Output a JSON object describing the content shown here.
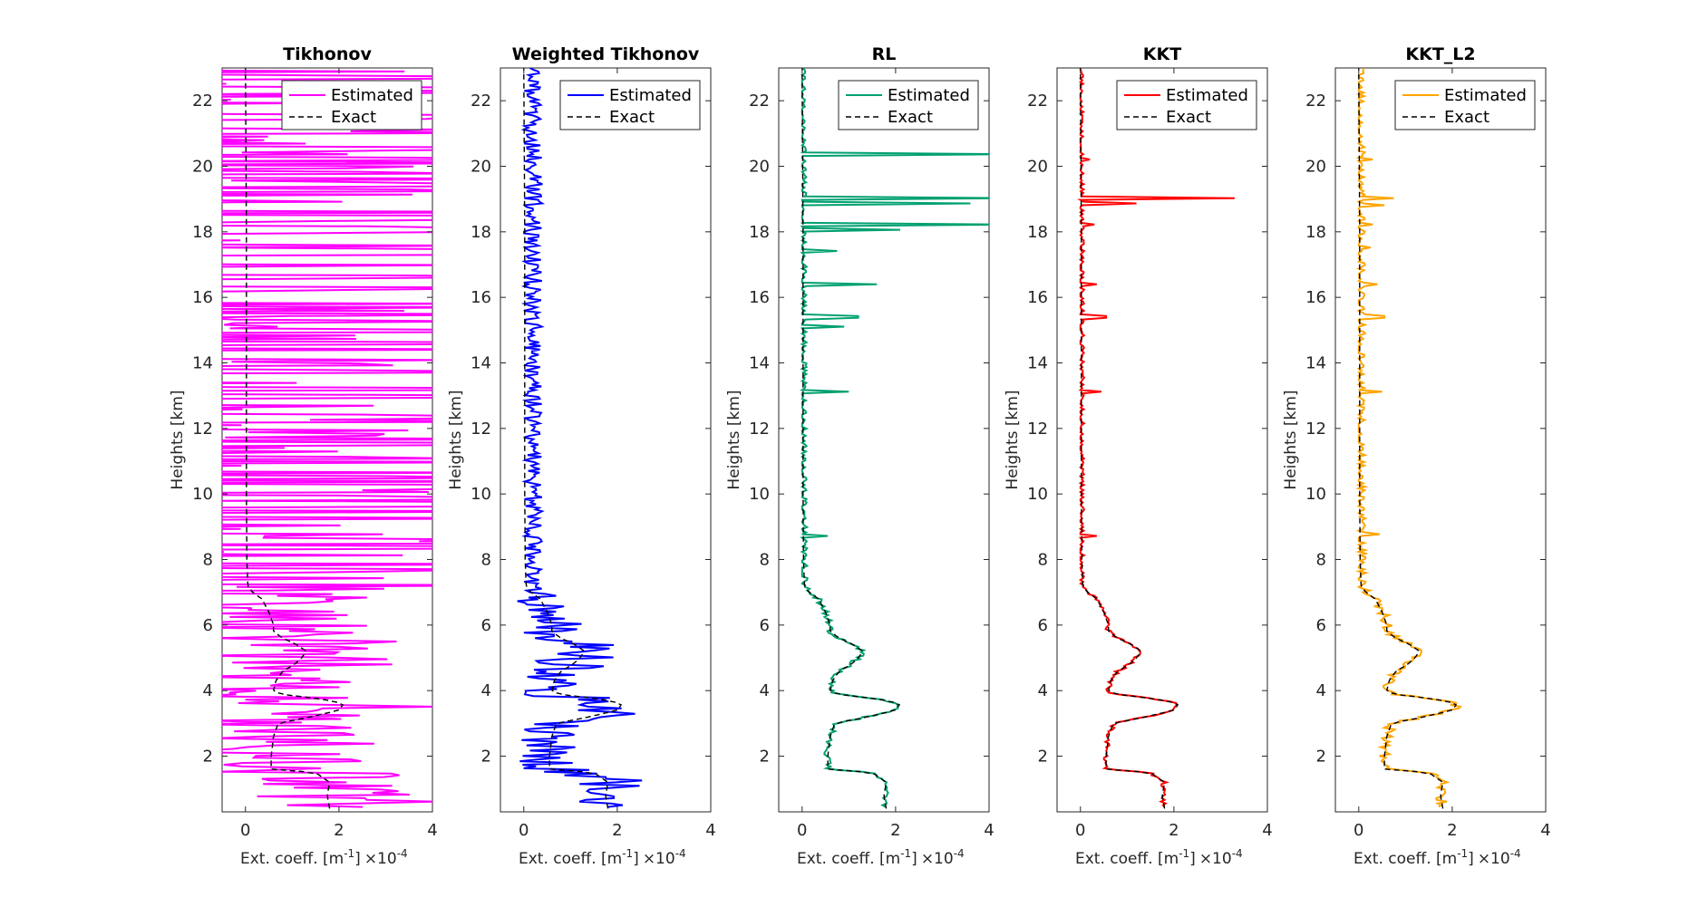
{
  "common": {
    "ylabel": "Heights [km]",
    "xlabel_pre": "Ext. coeff. [m",
    "xlabel_sup": "-1",
    "xlabel_post": "]",
    "multiplier": "×10",
    "multiplier_exp": "-4",
    "xlim": [
      -0.5,
      4
    ],
    "ylim": [
      0.3,
      23
    ],
    "xticks": [
      "0",
      "2",
      "4"
    ],
    "yticks": [
      "2",
      "4",
      "6",
      "8",
      "10",
      "12",
      "14",
      "16",
      "18",
      "20",
      "22"
    ],
    "legend_position": "top-right",
    "legend_estimated": "Estimated",
    "legend_exact": "Exact",
    "exact_color": "#000000"
  },
  "chart_data": [
    {
      "type": "line",
      "title": "Tikhonov",
      "color": "#ff00ff",
      "noise": 2.3,
      "clip": true,
      "series": [
        {
          "name": "Estimated"
        },
        {
          "name": "Exact",
          "style": "dashed"
        }
      ]
    },
    {
      "type": "line",
      "title": "Weighted Tikhonov",
      "color": "#0000ff",
      "noise": 0.9,
      "clip": true,
      "series": [
        {
          "name": "Estimated"
        },
        {
          "name": "Exact",
          "style": "dashed"
        }
      ]
    },
    {
      "type": "line",
      "title": "RL",
      "color": "#00a070",
      "noise": 0.08,
      "spikes": [
        [
          20.35,
          4.5
        ],
        [
          19.05,
          4.5
        ],
        [
          18.85,
          3.6
        ],
        [
          18.2,
          4.5
        ],
        [
          18.05,
          2.1
        ],
        [
          17.4,
          0.75
        ],
        [
          16.4,
          1.6
        ],
        [
          15.4,
          1.2
        ],
        [
          15.1,
          0.9
        ],
        [
          13.1,
          1.0
        ],
        [
          8.7,
          0.55
        ]
      ],
      "clip": true,
      "series": [
        {
          "name": "Estimated"
        },
        {
          "name": "Exact",
          "style": "dashed"
        }
      ]
    },
    {
      "type": "line",
      "title": "KKT",
      "color": "#ff0000",
      "noise": 0.06,
      "spikes": [
        [
          20.2,
          0.2
        ],
        [
          19.05,
          3.3
        ],
        [
          18.85,
          1.2
        ],
        [
          18.2,
          0.3
        ],
        [
          16.4,
          0.35
        ],
        [
          15.4,
          0.55
        ],
        [
          13.1,
          0.45
        ],
        [
          8.7,
          0.35
        ]
      ],
      "clip": true,
      "series": [
        {
          "name": "Estimated"
        },
        {
          "name": "Exact",
          "style": "dashed"
        }
      ]
    },
    {
      "type": "line",
      "title": "KKT_L2",
      "color": "#ffa500",
      "noise": 0.12,
      "spikes": [
        [
          20.2,
          0.3
        ],
        [
          19.05,
          0.75
        ],
        [
          18.8,
          0.55
        ],
        [
          18.2,
          0.3
        ],
        [
          17.5,
          0.25
        ],
        [
          16.4,
          0.4
        ],
        [
          15.4,
          0.55
        ],
        [
          13.1,
          0.5
        ],
        [
          8.75,
          0.45
        ]
      ],
      "clip": true,
      "series": [
        {
          "name": "Estimated"
        },
        {
          "name": "Exact",
          "style": "dashed"
        }
      ]
    }
  ],
  "exact_profile": {
    "heights": [
      0.4,
      0.8,
      1.2,
      1.5,
      1.6,
      2.0,
      2.6,
      3.0,
      3.2,
      3.4,
      3.6,
      3.75,
      3.9,
      4.0,
      4.3,
      4.6,
      4.8,
      5.0,
      5.2,
      5.4,
      5.6,
      5.8,
      6.0,
      6.4,
      6.8,
      7.0,
      7.2,
      8.0,
      10.0,
      14.0,
      18.0,
      23.0
    ],
    "values": [
      1.8,
      1.75,
      1.8,
      1.5,
      0.55,
      0.55,
      0.6,
      0.7,
      1.4,
      2.0,
      2.1,
      1.6,
      0.7,
      0.6,
      0.65,
      0.8,
      1.05,
      1.2,
      1.3,
      1.1,
      0.8,
      0.6,
      0.6,
      0.5,
      0.35,
      0.15,
      0.05,
      0.03,
      0.02,
      0.02,
      0.02,
      0.0
    ]
  }
}
